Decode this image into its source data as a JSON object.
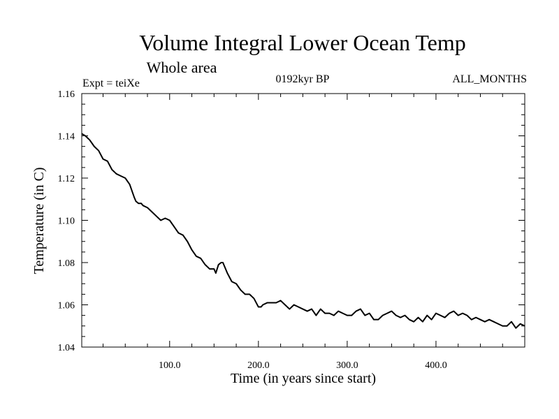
{
  "chart_data": {
    "type": "line",
    "title": "Volume Integral Lower Ocean Temp",
    "subtitle": "Whole area",
    "left_note": "Expt = teiXe",
    "center_note": "0192kyr BP",
    "right_note": "ALL_MONTHS",
    "xlabel": "Time (in years since start)",
    "ylabel": "Temperature (in C)",
    "xlim": [
      1,
      500
    ],
    "ylim": [
      1.04,
      1.16
    ],
    "x_ticks": [
      {
        "value": 100,
        "label": "100.0"
      },
      {
        "value": 200,
        "label": "200.0"
      },
      {
        "value": 300,
        "label": "300.0"
      },
      {
        "value": 400,
        "label": "400.0"
      }
    ],
    "y_ticks": [
      {
        "value": 1.04,
        "label": "1.04"
      },
      {
        "value": 1.06,
        "label": "1.06"
      },
      {
        "value": 1.08,
        "label": "1.08"
      },
      {
        "value": 1.1,
        "label": "1.10"
      },
      {
        "value": 1.12,
        "label": "1.12"
      },
      {
        "value": 1.14,
        "label": "1.14"
      },
      {
        "value": 1.16,
        "label": "1.16"
      }
    ],
    "grid": false,
    "series": [
      {
        "color": "#000000",
        "x": [
          1,
          5,
          10,
          15,
          20,
          25,
          30,
          35,
          40,
          45,
          50,
          55,
          60,
          62,
          65,
          68,
          70,
          75,
          80,
          85,
          90,
          95,
          100,
          105,
          110,
          115,
          120,
          125,
          130,
          135,
          140,
          145,
          150,
          152,
          155,
          158,
          160,
          165,
          170,
          175,
          180,
          185,
          190,
          195,
          200,
          203,
          205,
          210,
          215,
          220,
          225,
          230,
          235,
          240,
          245,
          250,
          255,
          260,
          265,
          270,
          275,
          280,
          285,
          290,
          295,
          300,
          305,
          310,
          315,
          320,
          325,
          330,
          335,
          340,
          345,
          350,
          355,
          360,
          365,
          370,
          375,
          380,
          385,
          390,
          395,
          400,
          405,
          410,
          415,
          420,
          425,
          430,
          435,
          440,
          445,
          450,
          455,
          460,
          465,
          470,
          475,
          480,
          485,
          490,
          495,
          500
        ],
        "y": [
          1.141,
          1.14,
          1.138,
          1.135,
          1.133,
          1.129,
          1.128,
          1.124,
          1.122,
          1.121,
          1.12,
          1.117,
          1.111,
          1.109,
          1.108,
          1.108,
          1.107,
          1.106,
          1.104,
          1.102,
          1.1,
          1.101,
          1.1,
          1.097,
          1.094,
          1.093,
          1.09,
          1.086,
          1.083,
          1.082,
          1.079,
          1.077,
          1.077,
          1.075,
          1.079,
          1.08,
          1.08,
          1.075,
          1.071,
          1.07,
          1.067,
          1.065,
          1.065,
          1.063,
          1.059,
          1.059,
          1.06,
          1.061,
          1.061,
          1.061,
          1.062,
          1.06,
          1.058,
          1.06,
          1.059,
          1.058,
          1.057,
          1.058,
          1.055,
          1.058,
          1.056,
          1.056,
          1.055,
          1.057,
          1.056,
          1.055,
          1.055,
          1.057,
          1.058,
          1.055,
          1.056,
          1.053,
          1.053,
          1.055,
          1.056,
          1.057,
          1.055,
          1.054,
          1.055,
          1.053,
          1.052,
          1.054,
          1.052,
          1.055,
          1.053,
          1.056,
          1.055,
          1.054,
          1.056,
          1.057,
          1.055,
          1.056,
          1.055,
          1.053,
          1.054,
          1.053,
          1.052,
          1.053,
          1.052,
          1.051,
          1.05,
          1.05,
          1.052,
          1.049,
          1.051,
          1.05
        ]
      }
    ]
  }
}
